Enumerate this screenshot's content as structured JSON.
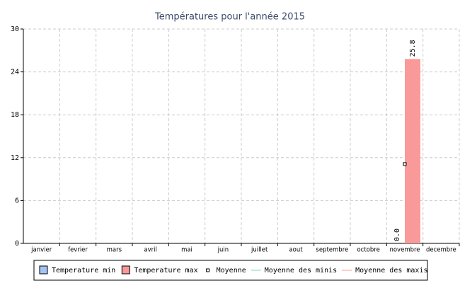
{
  "chart_data": {
    "type": "bar",
    "title": "Températures pour l'année 2015",
    "categories": [
      "janvier",
      "fevrier",
      "mars",
      "avril",
      "mai",
      "juin",
      "juillet",
      "aout",
      "septembre",
      "octobre",
      "novembre",
      "decembre"
    ],
    "series": [
      {
        "name": "Temperature min",
        "type": "bar",
        "color": "#a4c2f4",
        "values": [
          null,
          null,
          null,
          null,
          null,
          null,
          null,
          null,
          null,
          null,
          0,
          null
        ],
        "value_labels": [
          null,
          null,
          null,
          null,
          null,
          null,
          null,
          null,
          null,
          null,
          "0.0",
          null
        ]
      },
      {
        "name": "Temperature max",
        "type": "bar",
        "color": "#f99999",
        "values": [
          null,
          null,
          null,
          null,
          null,
          null,
          null,
          null,
          null,
          null,
          25.8,
          null
        ]
      },
      {
        "name": "Moyenne",
        "type": "line",
        "marker": true,
        "color": "#000000",
        "values": [
          null,
          null,
          null,
          null,
          null,
          null,
          null,
          null,
          null,
          null,
          11.1,
          null
        ]
      },
      {
        "name": "Moyenne des minis",
        "type": "line",
        "color": "#7fd3d3",
        "values": [
          null,
          null,
          null,
          null,
          null,
          null,
          null,
          null,
          null,
          null,
          null,
          null
        ]
      },
      {
        "name": "Moyenne des maxis",
        "type": "line",
        "color": "#f99999",
        "values": [
          null,
          null,
          null,
          null,
          null,
          null,
          null,
          null,
          null,
          null,
          null,
          null
        ]
      }
    ],
    "ylim": [
      0,
      30
    ],
    "yticks": [
      0,
      6,
      12,
      18,
      24,
      30
    ],
    "grid": true
  }
}
